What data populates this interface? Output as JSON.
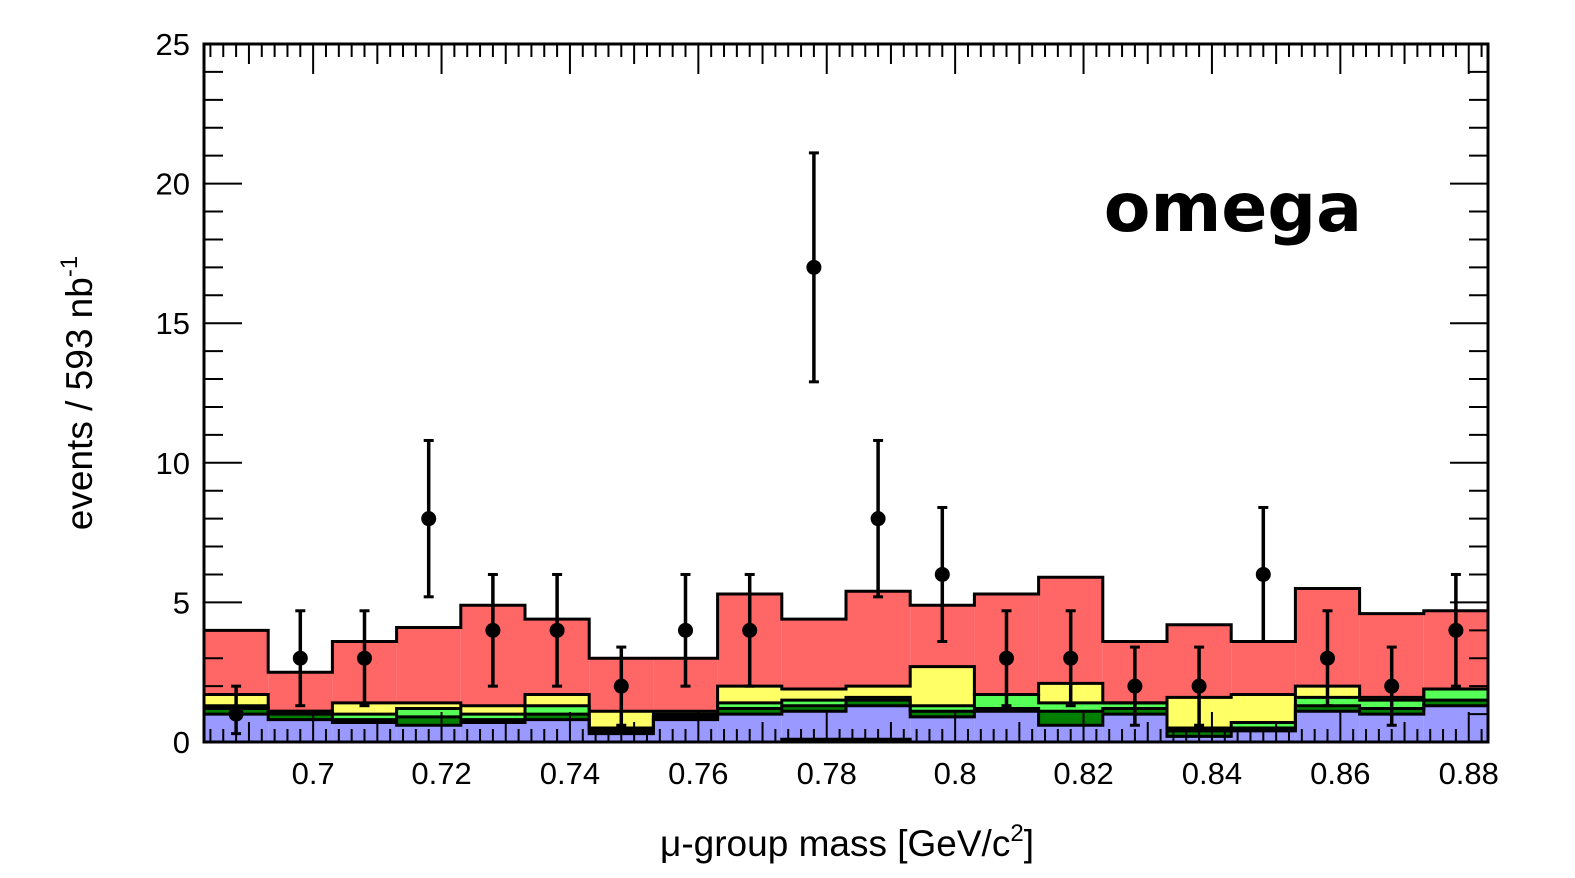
{
  "chart_data": {
    "type": "bar",
    "stacked": true,
    "histogram_step": true,
    "annotation": "omega",
    "xlabel_prefix": "μ-group mass [GeV/c",
    "xlabel_sup": "2",
    "xlabel_suffix": "]",
    "ylabel_prefix": "events / 593 nb",
    "ylabel_sup": "-1",
    "xlim": [
      0.683,
      0.883
    ],
    "ylim": [
      0,
      25
    ],
    "x_ticks": [
      0.7,
      0.72,
      0.74,
      0.76,
      0.78,
      0.8,
      0.82,
      0.84,
      0.86,
      0.88
    ],
    "x_tick_labels": [
      "0.7",
      "0.72",
      "0.74",
      "0.76",
      "0.78",
      "0.8",
      "0.82",
      "0.84",
      "0.86",
      "0.88"
    ],
    "y_ticks": [
      0,
      5,
      10,
      15,
      20,
      25
    ],
    "y_tick_labels": [
      "0",
      "5",
      "10",
      "15",
      "20",
      "25"
    ],
    "grid": false,
    "legend": "none",
    "bin_edges": [
      0.683,
      0.693,
      0.703,
      0.713,
      0.723,
      0.733,
      0.743,
      0.753,
      0.763,
      0.773,
      0.783,
      0.793,
      0.803,
      0.813,
      0.823,
      0.833,
      0.843,
      0.853,
      0.863,
      0.873,
      0.883
    ],
    "series": [
      {
        "color": "#00e5e5",
        "values": [
          0,
          0,
          0,
          0,
          0,
          0,
          0,
          0,
          0,
          0.1,
          0.1,
          0,
          0,
          0,
          0,
          0,
          0,
          0,
          0,
          0
        ]
      },
      {
        "color": "#9999ff",
        "values": [
          1.0,
          0.8,
          0.7,
          0.6,
          0.7,
          0.8,
          0.3,
          0.8,
          1.0,
          1.0,
          1.2,
          0.9,
          1.1,
          0.6,
          1.0,
          0.2,
          0.4,
          1.1,
          1.0,
          1.3
        ]
      },
      {
        "color": "#007f00",
        "values": [
          0.2,
          0.2,
          0.1,
          0.3,
          0.1,
          0.2,
          0.1,
          0.1,
          0.2,
          0.2,
          0.2,
          0.2,
          0.1,
          0.5,
          0.2,
          0.2,
          0.1,
          0.2,
          0.2,
          0.2
        ]
      },
      {
        "color": "#55ff55",
        "values": [
          0.1,
          0.1,
          0.2,
          0.3,
          0.2,
          0.3,
          0.1,
          0.1,
          0.2,
          0.2,
          0.1,
          0.2,
          0.5,
          0.3,
          0.2,
          0.1,
          0.2,
          0.3,
          0.3,
          0.4
        ]
      },
      {
        "color": "#ffff66",
        "values": [
          0.4,
          0.0,
          0.4,
          0.2,
          0.3,
          0.4,
          0.6,
          0.1,
          0.6,
          0.4,
          0.4,
          1.4,
          0.0,
          0.7,
          0.0,
          1.1,
          1.0,
          0.4,
          0.1,
          0.0
        ]
      },
      {
        "color": "#ff6666",
        "values": [
          2.3,
          1.4,
          2.2,
          2.7,
          3.6,
          2.7,
          1.9,
          1.9,
          3.3,
          2.5,
          3.4,
          2.2,
          3.6,
          3.8,
          2.2,
          2.6,
          1.9,
          3.5,
          3.0,
          2.8
        ]
      }
    ],
    "data_points": {
      "x": [
        0.688,
        0.698,
        0.708,
        0.718,
        0.728,
        0.738,
        0.748,
        0.758,
        0.768,
        0.778,
        0.788,
        0.798,
        0.808,
        0.818,
        0.828,
        0.838,
        0.848,
        0.858,
        0.868,
        0.878
      ],
      "y": [
        1,
        3,
        3,
        8,
        4,
        4,
        2,
        4,
        4,
        17,
        8,
        6,
        3,
        3,
        2,
        2,
        6,
        3,
        2,
        4
      ],
      "err_low": [
        0.7,
        1.7,
        1.7,
        2.8,
        2.0,
        2.0,
        1.4,
        2.0,
        2.0,
        4.1,
        2.8,
        2.4,
        1.7,
        1.7,
        1.4,
        1.4,
        2.4,
        1.7,
        1.4,
        2.0
      ],
      "err_high": [
        1.0,
        1.7,
        1.7,
        2.8,
        2.0,
        2.0,
        1.4,
        2.0,
        2.0,
        4.1,
        2.8,
        2.4,
        1.7,
        1.7,
        1.4,
        1.4,
        2.4,
        1.7,
        1.4,
        2.0
      ]
    }
  }
}
